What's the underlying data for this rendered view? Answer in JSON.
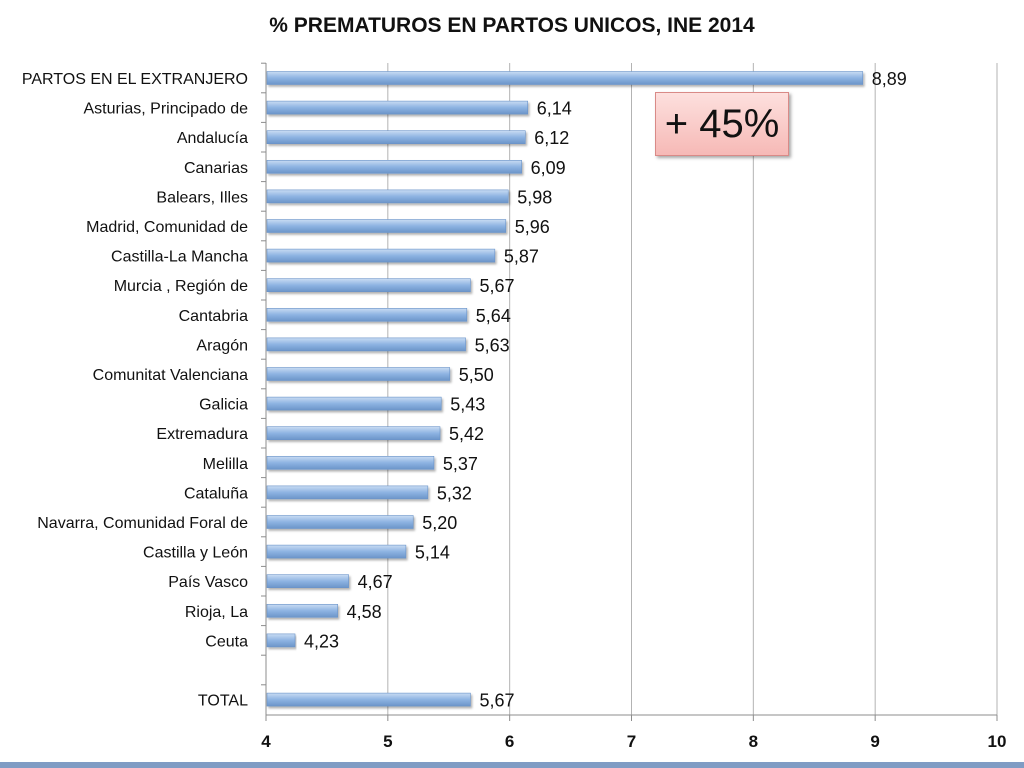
{
  "chart_data": {
    "type": "bar",
    "orientation": "horizontal",
    "title": "% PREMATUROS EN PARTOS UNICOS, INE 2014",
    "categories": [
      "PARTOS EN EL EXTRANJERO",
      "Asturias, Principado de",
      "Andalucía",
      "Canarias",
      "Balears, Illes",
      "Madrid, Comunidad de",
      "Castilla-La Mancha",
      "Murcia , Región de",
      "Cantabria",
      "Aragón",
      "Comunitat Valenciana",
      "Galicia",
      "Extremadura",
      "Melilla",
      "Cataluña",
      "Navarra, Comunidad Foral de",
      "Castilla y León",
      "País Vasco",
      "Rioja, La",
      "Ceuta",
      "",
      "TOTAL"
    ],
    "values": [
      8.89,
      6.14,
      6.12,
      6.09,
      5.98,
      5.96,
      5.87,
      5.67,
      5.64,
      5.63,
      5.5,
      5.43,
      5.42,
      5.37,
      5.32,
      5.2,
      5.14,
      4.67,
      4.58,
      4.23,
      null,
      5.67
    ],
    "value_labels": [
      "8,89",
      "6,14",
      "6,12",
      "6,09",
      "5,98",
      "5,96",
      "5,87",
      "5,67",
      "5,64",
      "5,63",
      "5,50",
      "5,43",
      "5,42",
      "5,37",
      "5,32",
      "5,20",
      "5,14",
      "4,67",
      "4,58",
      "4,23",
      "",
      "5,67"
    ],
    "x_ticks": [
      4,
      5,
      6,
      7,
      8,
      9,
      10
    ],
    "xlim": [
      4,
      10
    ],
    "xlabel": "",
    "ylabel": "",
    "grid": true,
    "legend": "none",
    "bar_color": "#8db3e2",
    "annotation": "+ 45%"
  }
}
